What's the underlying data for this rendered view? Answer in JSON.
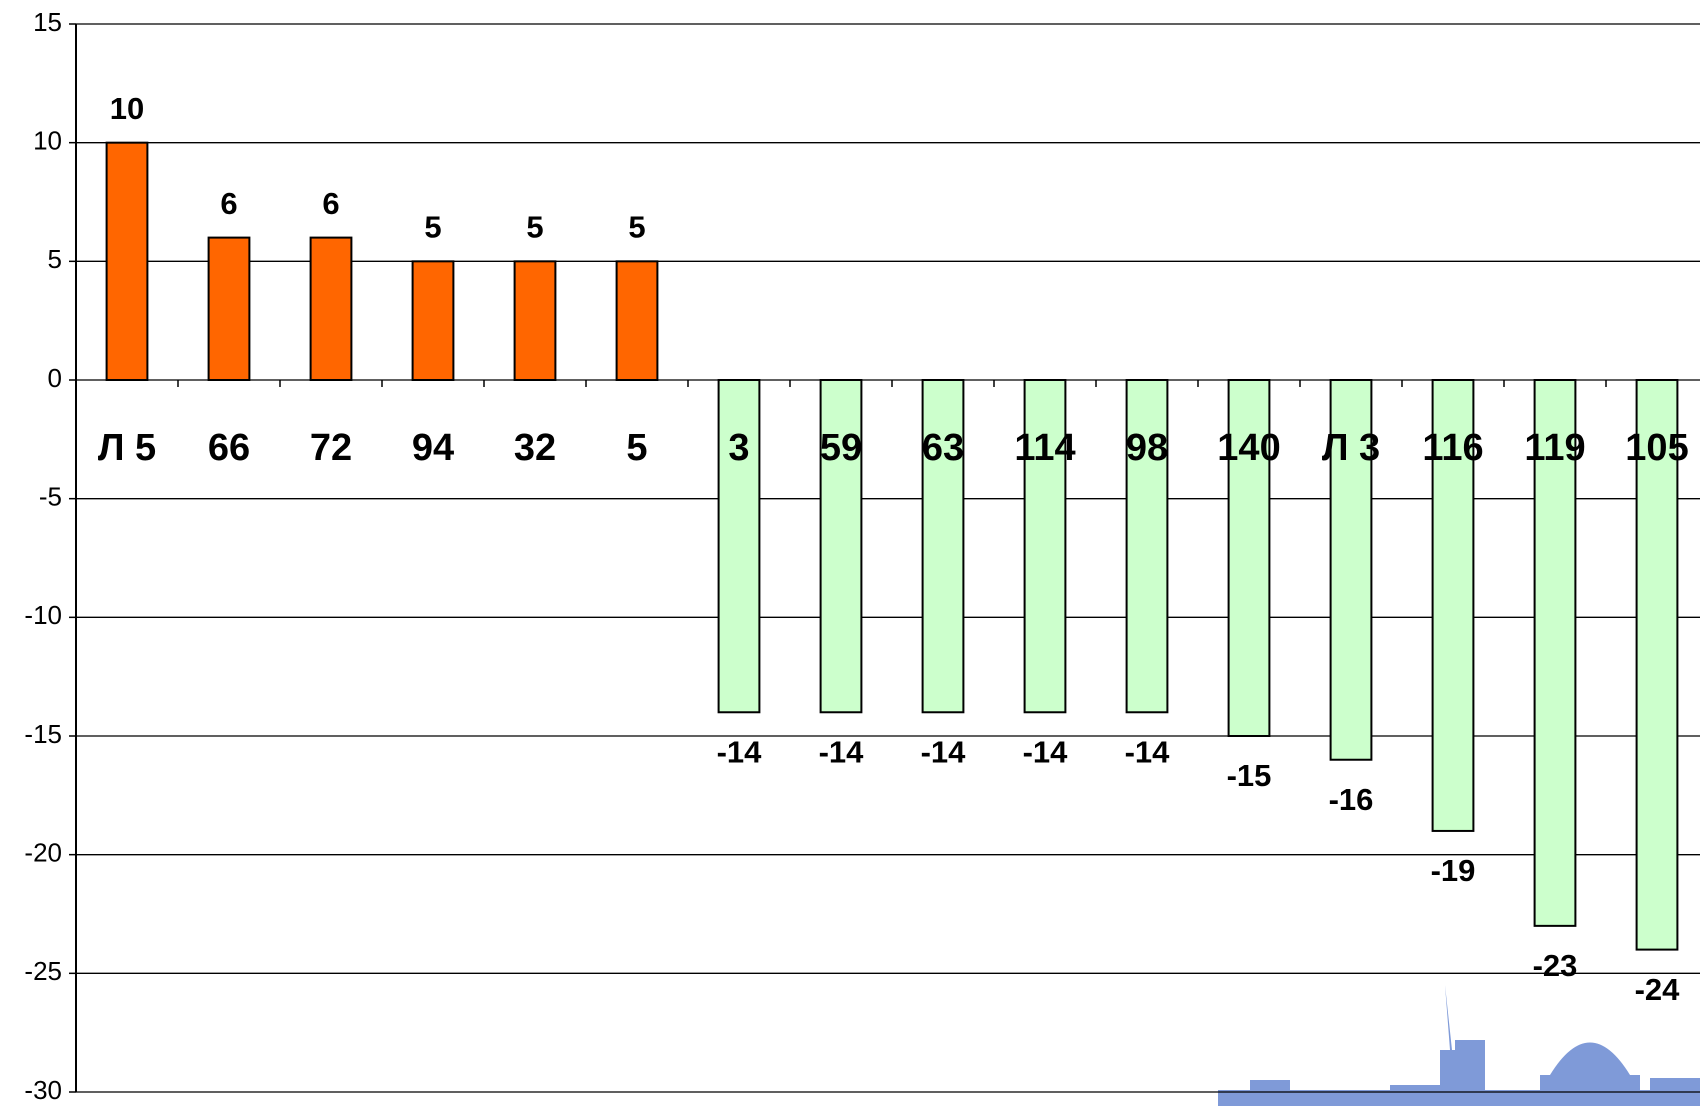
{
  "chart_data": {
    "type": "bar",
    "categories": [
      "Л 5",
      "66",
      "72",
      "94",
      "32",
      "5",
      "3",
      "59",
      "63",
      "114",
      "98",
      "140",
      "Л 3",
      "116",
      "119",
      "105"
    ],
    "values": [
      10,
      6,
      6,
      5,
      5,
      5,
      -14,
      -14,
      -14,
      -14,
      -14,
      -15,
      -16,
      -19,
      -23,
      -24
    ],
    "colors": [
      "#ff6600",
      "#ff6600",
      "#ff6600",
      "#ff6600",
      "#ff6600",
      "#ff6600",
      "#ccffcc",
      "#ccffcc",
      "#ccffcc",
      "#ccffcc",
      "#ccffcc",
      "#ccffcc",
      "#ccffcc",
      "#ccffcc",
      "#ccffcc",
      "#ccffcc"
    ],
    "ylim": [
      -30,
      15
    ],
    "yticks": [
      -30,
      -25,
      -20,
      -15,
      -10,
      -5,
      0,
      5,
      10,
      15
    ],
    "grid": true
  }
}
